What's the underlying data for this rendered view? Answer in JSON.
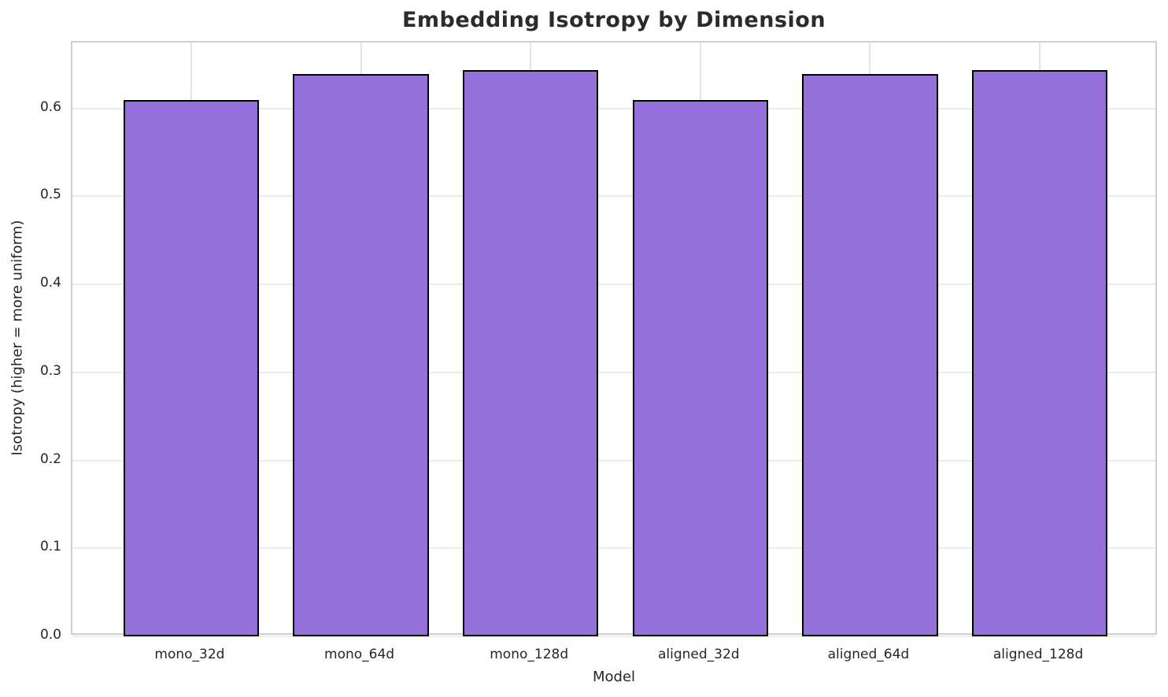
{
  "chart_data": {
    "type": "bar",
    "title": "Embedding Isotropy by Dimension",
    "xlabel": "Model",
    "ylabel": "Isotropy (higher = more uniform)",
    "categories": [
      "mono_32d",
      "mono_64d",
      "mono_128d",
      "aligned_32d",
      "aligned_64d",
      "aligned_128d"
    ],
    "values": [
      0.61,
      0.639,
      0.644,
      0.61,
      0.639,
      0.644
    ],
    "ylim": [
      0,
      0.675
    ],
    "yticks": [
      0.0,
      0.1,
      0.2,
      0.3,
      0.4,
      0.5,
      0.6
    ],
    "ytick_labels": [
      "0.0",
      "0.1",
      "0.2",
      "0.3",
      "0.4",
      "0.5",
      "0.6"
    ],
    "grid": "both",
    "legend": "none",
    "bar_width_fraction": 0.8,
    "x_margin_units": 0.7,
    "colors": {
      "bar_fill": "#9370DB",
      "bar_edge": "#000000",
      "grid_h": "#ebebeb",
      "grid_v": "#e4e4e4",
      "spine": "#d0d0d0",
      "text": "#262626",
      "background": "#ffffff"
    }
  }
}
